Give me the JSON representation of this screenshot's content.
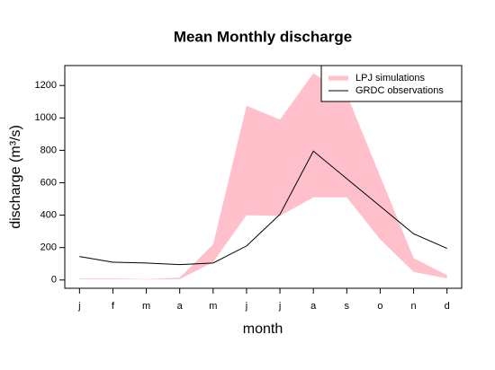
{
  "chart_data": {
    "type": "line",
    "title": "Mean Monthly discharge",
    "x_label": "month",
    "y_label": "discharge (m³/s)",
    "categories": [
      "j",
      "f",
      "m",
      "a",
      "m",
      "j",
      "j",
      "a",
      "s",
      "o",
      "n",
      "d"
    ],
    "series": [
      {
        "name": "LPJ simulations",
        "color": "#ffc0cb",
        "upper": [
          10,
          10,
          5,
          15,
          220,
          1075,
          990,
          1275,
          1145,
          640,
          135,
          30
        ],
        "lower": [
          5,
          5,
          3,
          5,
          110,
          400,
          395,
          510,
          510,
          250,
          50,
          10
        ]
      },
      {
        "name": "GRDC observations",
        "color": "#000000",
        "values": [
          145,
          110,
          105,
          95,
          105,
          210,
          405,
          795,
          625,
          455,
          285,
          195
        ]
      }
    ],
    "ylim": [
      -51,
      1323
    ],
    "yticks": [
      0,
      200,
      400,
      600,
      800,
      1000,
      1200
    ],
    "legend": "top-right"
  }
}
